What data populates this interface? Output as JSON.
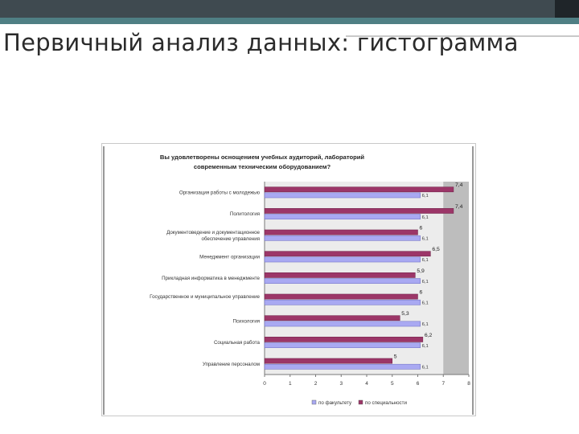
{
  "slide": {
    "title": "Первичный анализ данных: гистограмма"
  },
  "chart_data": {
    "type": "bar",
    "orientation": "horizontal",
    "title_lines": [
      "Вы удовлетворены оснощением учебных аудиторий, лабораторий",
      "современным техническим оборудованием?"
    ],
    "categories": [
      "Организация работы с молодежью",
      "Политология",
      "Документоведение и документационное обеспечение управления",
      "Менеджмент организации",
      "Прикладная информатика в менеджменте",
      "Государственное и муниципальное управление",
      "Психология",
      "Социальная работа",
      "Управление персоналом"
    ],
    "series": [
      {
        "name": "по факультету",
        "color": "#a9a9f2",
        "values": [
          6.1,
          6.1,
          6.1,
          6.1,
          6.1,
          6.1,
          6.1,
          6.1,
          6.1
        ],
        "labels": [
          "6,1",
          "6,1",
          "6,1",
          "6,1",
          "6,1",
          "6,1",
          "6,1",
          "6,1",
          "6,1"
        ]
      },
      {
        "name": "по специальности",
        "color": "#9c3668",
        "values": [
          7.4,
          7.4,
          6.0,
          6.5,
          5.9,
          6.0,
          5.3,
          6.2,
          5.0
        ],
        "labels": [
          "7,4",
          "7,4",
          "6",
          "6,5",
          "5,9",
          "6",
          "5,3",
          "6,2",
          "5"
        ]
      }
    ],
    "xlim": [
      0,
      8
    ],
    "xticks": [
      "0",
      "1",
      "2",
      "3",
      "4",
      "5",
      "6",
      "7",
      "8"
    ],
    "grid": false,
    "legend_position": "bottom"
  }
}
